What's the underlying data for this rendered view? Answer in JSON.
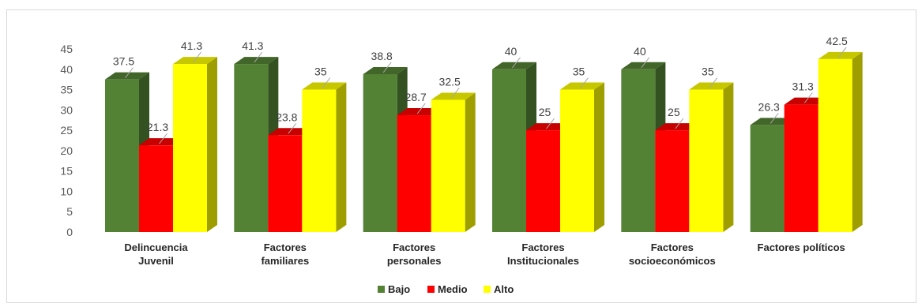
{
  "chart_data": {
    "type": "bar",
    "title": "",
    "xlabel": "",
    "ylabel": "",
    "ylim": [
      0,
      45
    ],
    "yticks": [
      0,
      5,
      10,
      15,
      20,
      25,
      30,
      35,
      40,
      45
    ],
    "grid": false,
    "legend_position": "bottom",
    "categories": [
      [
        "Delincuencia",
        "Juvenil"
      ],
      [
        "Factores",
        "familiares"
      ],
      [
        "Factores",
        "personales"
      ],
      [
        "Factores",
        "Institucionales"
      ],
      [
        "Factores",
        "socioeconómicos"
      ],
      [
        "Factores políticos"
      ]
    ],
    "series": [
      {
        "name": "Bajo",
        "color": "#548235",
        "values": [
          37.5,
          41.3,
          38.8,
          40,
          40,
          26.3
        ]
      },
      {
        "name": "Medio",
        "color": "#ff0000",
        "values": [
          21.3,
          23.8,
          28.7,
          25,
          25,
          31.3
        ]
      },
      {
        "name": "Alto",
        "color": "#ffff00",
        "values": [
          41.3,
          35,
          32.5,
          35,
          35,
          42.5
        ]
      }
    ]
  }
}
